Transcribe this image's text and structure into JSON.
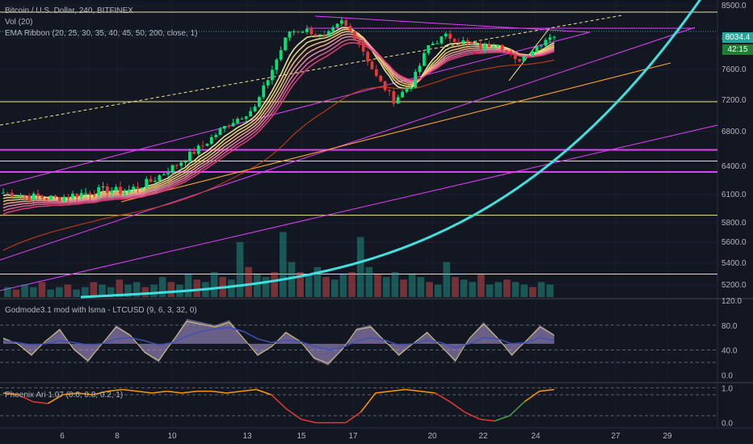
{
  "header": {
    "symbol_line": "Bitcoin / U.S. Dollar, 240, BITFINEX",
    "vol_label": "Vol (20)",
    "ema_label": "EMA Ribbon (20, 25, 30, 35, 40, 45, 50, 200, close, 1)"
  },
  "price_tags": {
    "last_price": "8034.4",
    "countdown": "42:15"
  },
  "indicators": {
    "godmode_label": "Godmode3.1 mod with lsma - LTCUSD (9, 6, 3, 32, 0)",
    "phoenix_label": "Phoenix Ari 1.07 (0.6, 0.8, 0.2, 1)"
  },
  "chart_data": [
    {
      "type": "candlestick",
      "pane": "price",
      "ylim": [
        5100,
        8500
      ],
      "y_ticks": [
        "8500.0",
        "8000.0",
        "7600.0",
        "7200.0",
        "6800.0",
        "6400.0",
        "6100.0",
        "5800.0",
        "5600.0",
        "5400.0",
        "5200.0"
      ],
      "x_ticks": [
        "6",
        "8",
        "10",
        "13",
        "15",
        "17",
        "20",
        "22",
        "24",
        "27",
        "29"
      ],
      "last_price": 8034.4,
      "close_trend": [
        [
          0,
          6120
        ],
        [
          6,
          6080
        ],
        [
          12,
          6060
        ],
        [
          18,
          6110
        ],
        [
          24,
          6150
        ],
        [
          28,
          6130
        ],
        [
          34,
          6240
        ],
        [
          40,
          6420
        ],
        [
          46,
          6640
        ],
        [
          52,
          6900
        ],
        [
          58,
          7100
        ],
        [
          62,
          7600
        ],
        [
          66,
          8100
        ],
        [
          70,
          8120
        ],
        [
          74,
          8000
        ],
        [
          78,
          8250
        ],
        [
          82,
          7950
        ],
        [
          86,
          7500
        ],
        [
          90,
          7200
        ],
        [
          94,
          7400
        ],
        [
          98,
          7900
        ],
        [
          102,
          8030
        ],
        [
          106,
          7950
        ],
        [
          110,
          7880
        ],
        [
          114,
          7950
        ],
        [
          118,
          7700
        ],
        [
          122,
          7850
        ],
        [
          126,
          8034
        ]
      ],
      "volume": [
        4,
        3,
        5,
        4,
        6,
        3,
        4,
        5,
        3,
        4,
        6,
        5,
        4,
        7,
        5,
        6,
        4,
        5,
        8,
        6,
        5,
        9,
        7,
        6,
        10,
        8,
        7,
        22,
        12,
        9,
        8,
        10,
        26,
        14,
        10,
        9,
        12,
        8,
        7,
        9,
        10,
        24,
        12,
        9,
        8,
        10,
        7,
        9,
        8,
        6,
        5,
        14,
        8,
        7,
        6,
        9,
        5,
        6,
        7,
        6,
        5,
        4,
        6,
        5
      ]
    },
    {
      "type": "line",
      "pane": "godmode",
      "ylim": [
        -10,
        120
      ],
      "y_ticks": [
        "120.0",
        "80.0",
        "40.0",
        "0.0"
      ],
      "series": [
        {
          "values": [
            60,
            50,
            30,
            55,
            75,
            40,
            20,
            50,
            80,
            65,
            35,
            20,
            55,
            90,
            85,
            80,
            88,
            60,
            30,
            45,
            70,
            55,
            25,
            15,
            40,
            75,
            80,
            55,
            30,
            50,
            70,
            45,
            20,
            60,
            85,
            60,
            30,
            55,
            80,
            65
          ]
        },
        {
          "values": [
            55,
            52,
            48,
            50,
            55,
            52,
            48,
            50,
            58,
            60,
            55,
            48,
            52,
            62,
            70,
            74,
            76,
            70,
            58,
            52,
            56,
            54,
            46,
            40,
            44,
            54,
            60,
            56,
            48,
            50,
            56,
            52,
            44,
            50,
            60,
            58,
            50,
            52,
            60,
            55
          ]
        }
      ]
    },
    {
      "type": "line",
      "pane": "phoenix",
      "ylim": [
        -0.1,
        1.1
      ],
      "y_ticks": [
        "1.0",
        "0.0"
      ],
      "series": [
        {
          "values": [
            0.85,
            0.8,
            0.6,
            0.55,
            0.8,
            0.85,
            0.8,
            0.9,
            0.95,
            0.9,
            0.85,
            0.9,
            0.85,
            0.9,
            0.9,
            0.85,
            0.9,
            0.95,
            0.8,
            0.4,
            0.1,
            0.0,
            0.0,
            0.0,
            0.3,
            0.85,
            0.9,
            0.95,
            0.9,
            0.85,
            0.6,
            0.3,
            0.1,
            0.05,
            0.2,
            0.6,
            0.9,
            0.95
          ]
        }
      ]
    }
  ]
}
